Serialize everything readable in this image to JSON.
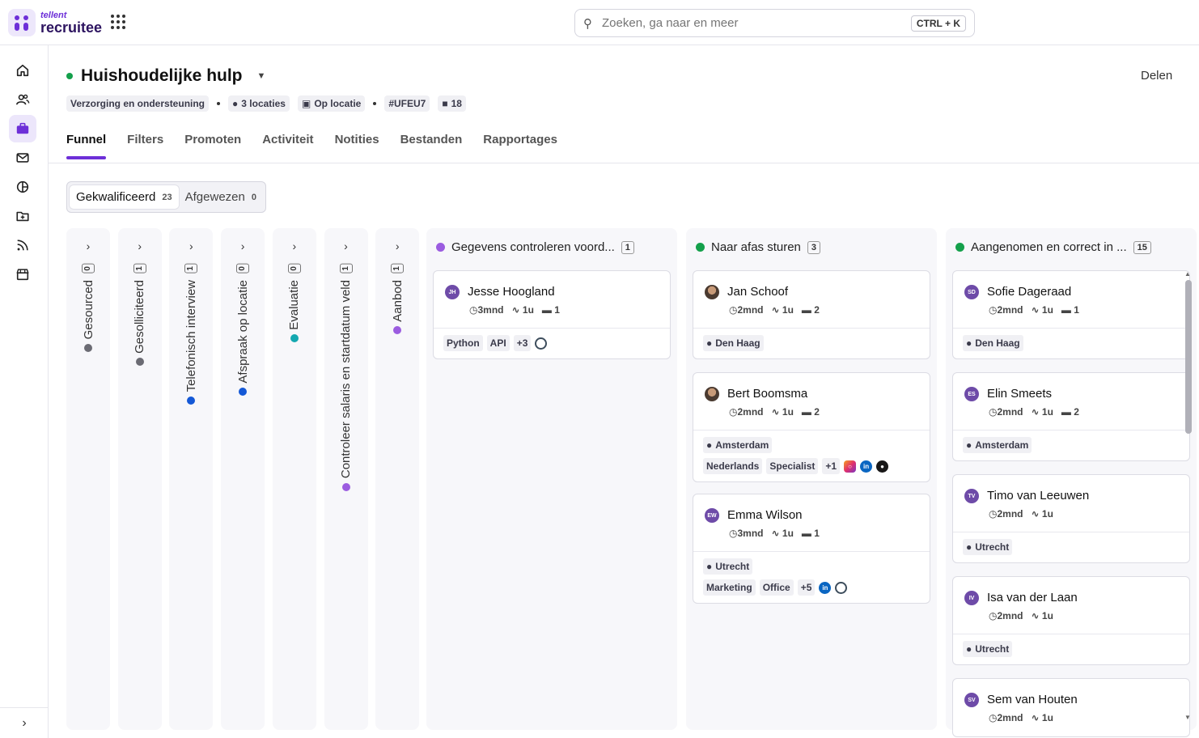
{
  "brand": {
    "small": "tellent",
    "big": "recruitee"
  },
  "search": {
    "placeholder": "Zoeken, ga naar en meer",
    "shortcut": "CTRL + K"
  },
  "job": {
    "title": "Huishoudelijke hulp",
    "share_label": "Delen",
    "status_color": "#14a04b",
    "meta": {
      "category": "Verzorging en ondersteuning",
      "locations": "3 locaties",
      "work_type": "Op locatie",
      "code": "#UFEU7",
      "openings": "18"
    }
  },
  "tabs": [
    "Funnel",
    "Filters",
    "Promoten",
    "Activiteit",
    "Notities",
    "Bestanden",
    "Rapportages"
  ],
  "filter_toggle": [
    {
      "label": "Gekwalificeerd",
      "count": "23"
    },
    {
      "label": "Afgewezen",
      "count": "0"
    }
  ],
  "collapsed_stages": [
    {
      "label": "Gesourced",
      "count": "0",
      "color": "#6b6b73"
    },
    {
      "label": "Gesolliciteerd",
      "count": "1",
      "color": "#6b6b73"
    },
    {
      "label": "Telefonisch interview",
      "count": "1",
      "color": "#1458d6"
    },
    {
      "label": "Afspraak op locatie",
      "count": "0",
      "color": "#1458d6"
    },
    {
      "label": "Evaluatie",
      "count": "0",
      "color": "#14a8b0"
    },
    {
      "label": "Controleer salaris en startdatum veld",
      "count": "1",
      "color": "#9b5ce0"
    },
    {
      "label": "Aanbod",
      "count": "1",
      "color": "#9b5ce0"
    }
  ],
  "stages": [
    {
      "title": "Gegevens controleren voord...",
      "count": "1",
      "color": "#9b5ce0",
      "cards": [
        {
          "initials": "JH",
          "name": "Jesse Hoogland",
          "age": "3mnd",
          "activity": "1u",
          "comments": "1",
          "location": "",
          "tags": [
            "Python",
            "API",
            "+3"
          ],
          "icons": [
            "globe-icon"
          ]
        }
      ]
    },
    {
      "title": "Naar afas sturen",
      "count": "3",
      "color": "#14a04b",
      "cards": [
        {
          "initials": "",
          "name": "Jan Schoof",
          "age": "2mnd",
          "activity": "1u",
          "comments": "2",
          "location": "Den Haag",
          "tags": [],
          "icons": []
        },
        {
          "initials": "",
          "name": "Bert Boomsma",
          "age": "2mnd",
          "activity": "1u",
          "comments": "2",
          "location": "Amsterdam",
          "tags": [
            "Nederlands",
            "Specialist",
            "+1"
          ],
          "icons": [
            "instagram-icon",
            "linkedin-icon",
            "github-icon"
          ]
        },
        {
          "initials": "EW",
          "name": "Emma Wilson",
          "age": "3mnd",
          "activity": "1u",
          "comments": "1",
          "location": "Utrecht",
          "tags": [
            "Marketing",
            "Office",
            "+5"
          ],
          "icons": [
            "linkedin-icon",
            "globe-icon"
          ]
        }
      ]
    },
    {
      "title": "Aangenomen en correct in ...",
      "count": "15",
      "color": "#14a04b",
      "cards": [
        {
          "initials": "SD",
          "name": "Sofie Dageraad",
          "age": "2mnd",
          "activity": "1u",
          "comments": "1",
          "location": "Den Haag"
        },
        {
          "initials": "ES",
          "name": "Elin Smeets",
          "age": "2mnd",
          "activity": "1u",
          "comments": "2",
          "location": "Amsterdam"
        },
        {
          "initials": "TV",
          "name": "Timo van Leeuwen",
          "age": "2mnd",
          "activity": "1u",
          "comments": "",
          "location": "Utrecht"
        },
        {
          "initials": "IV",
          "name": "Isa van der Laan",
          "age": "2mnd",
          "activity": "1u",
          "comments": "",
          "location": "Utrecht"
        },
        {
          "initials": "SV",
          "name": "Sem van Houten",
          "age": "2mnd",
          "activity": "1u",
          "comments": "",
          "location": ""
        }
      ]
    }
  ]
}
